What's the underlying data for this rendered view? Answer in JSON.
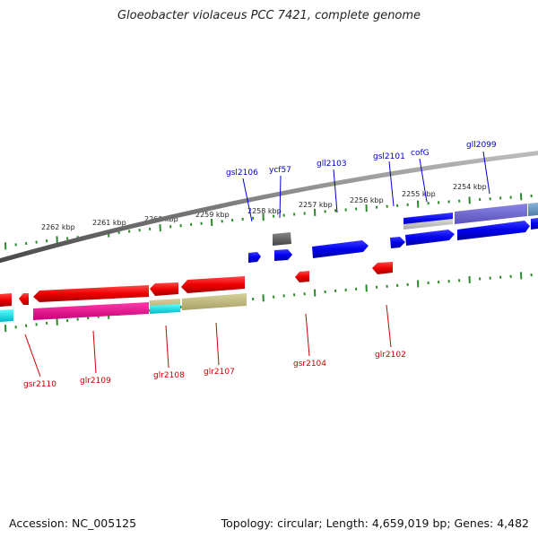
{
  "title": "Gloeobacter violaceus PCC 7421, complete genome",
  "footer": {
    "accession": "Accession: NC_005125",
    "summary": "Topology: circular; Length: 4,659,019 bp; Genes: 4,482"
  },
  "colors": {
    "forward_label": "#0000cc",
    "reverse_label": "#cc0000",
    "tick": "#2a8a2a",
    "backbone": "#8a8a8a"
  },
  "scale_labels": [
    "2262 kbp",
    "2261 kbp",
    "2260 kbp",
    "2259 kbp",
    "2258 kbp",
    "2257 kbp",
    "2256 kbp",
    "2255 kbp",
    "2254 kbp"
  ],
  "forward_genes": [
    "gsl2106",
    "ycf57",
    "gll2103",
    "gsl2101",
    "cofG",
    "gll2099"
  ],
  "reverse_genes": [
    "gsr2110",
    "glr2109",
    "glr2108",
    "glr2107",
    "gsr2104",
    "glr2102"
  ]
}
